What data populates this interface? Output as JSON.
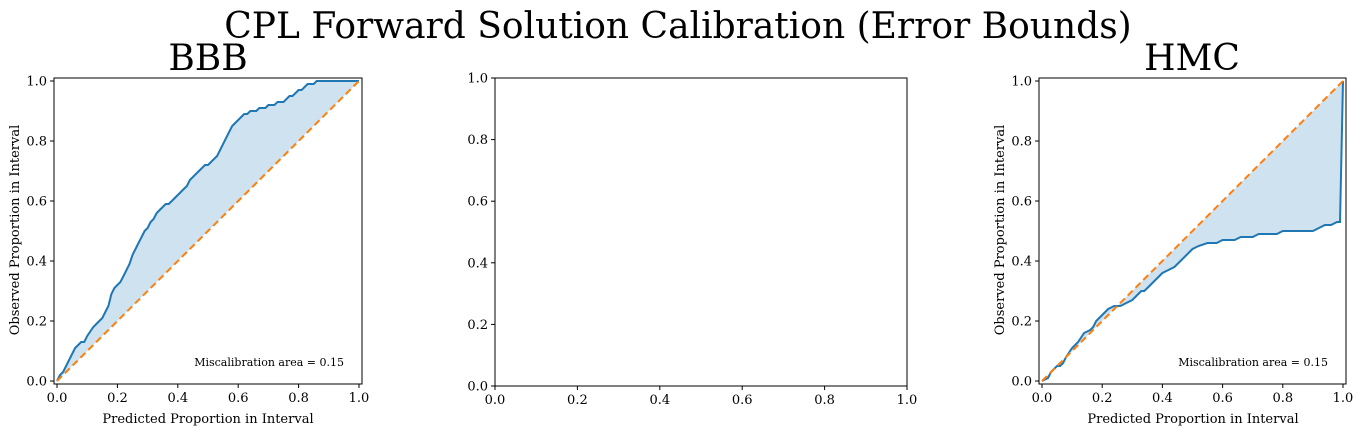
{
  "figure_title": "CPL Forward Solution Calibration (Error Bounds)",
  "colors": {
    "curve": "#1f77b4",
    "fill": "#cfe2f0",
    "ideal": "#ff7f0e",
    "axes": "#000000"
  },
  "chart_data": [
    {
      "type": "line",
      "title": "BBB",
      "xlabel": "Predicted Proportion in Interval",
      "ylabel": "Observed Proportion in Interval",
      "xlim": [
        0,
        1
      ],
      "ylim": [
        0,
        1
      ],
      "xticks": [
        "0.0",
        "0.2",
        "0.4",
        "0.6",
        "0.8",
        "1.0"
      ],
      "yticks": [
        "0.0",
        "0.2",
        "0.4",
        "0.6",
        "0.8",
        "1.0"
      ],
      "grid": false,
      "annotation": "Miscalibration area = 0.15",
      "series": [
        {
          "x": [
            0,
            0.01,
            0.02,
            0.03,
            0.04,
            0.05,
            0.06,
            0.07,
            0.08,
            0.09,
            0.1,
            0.12,
            0.14,
            0.15,
            0.16,
            0.17,
            0.18,
            0.19,
            0.2,
            0.21,
            0.22,
            0.23,
            0.24,
            0.25,
            0.26,
            0.27,
            0.28,
            0.29,
            0.3,
            0.31,
            0.32,
            0.33,
            0.34,
            0.35,
            0.36,
            0.37,
            0.38,
            0.39,
            0.4,
            0.41,
            0.42,
            0.43,
            0.44,
            0.45,
            0.46,
            0.47,
            0.48,
            0.49,
            0.5,
            0.51,
            0.52,
            0.53,
            0.54,
            0.55,
            0.56,
            0.57,
            0.58,
            0.59,
            0.6,
            0.61,
            0.62,
            0.63,
            0.64,
            0.65,
            0.66,
            0.67,
            0.68,
            0.69,
            0.7,
            0.71,
            0.72,
            0.73,
            0.74,
            0.75,
            0.76,
            0.77,
            0.78,
            0.79,
            0.8,
            0.81,
            0.82,
            0.83,
            0.84,
            0.85,
            0.86,
            0.87,
            0.88,
            0.9,
            0.92,
            0.95,
            0.98,
            1.0
          ],
          "y": [
            0,
            0.02,
            0.03,
            0.05,
            0.07,
            0.09,
            0.11,
            0.12,
            0.13,
            0.13,
            0.15,
            0.18,
            0.2,
            0.21,
            0.23,
            0.25,
            0.29,
            0.31,
            0.32,
            0.33,
            0.35,
            0.37,
            0.39,
            0.42,
            0.44,
            0.46,
            0.48,
            0.5,
            0.51,
            0.53,
            0.54,
            0.56,
            0.57,
            0.58,
            0.59,
            0.59,
            0.6,
            0.61,
            0.62,
            0.63,
            0.64,
            0.65,
            0.67,
            0.68,
            0.69,
            0.7,
            0.71,
            0.72,
            0.72,
            0.73,
            0.74,
            0.75,
            0.77,
            0.79,
            0.81,
            0.83,
            0.85,
            0.86,
            0.87,
            0.88,
            0.89,
            0.89,
            0.9,
            0.9,
            0.9,
            0.91,
            0.91,
            0.91,
            0.92,
            0.92,
            0.92,
            0.93,
            0.93,
            0.93,
            0.94,
            0.95,
            0.95,
            0.96,
            0.97,
            0.97,
            0.98,
            0.99,
            0.99,
            0.99,
            1.0,
            1.0,
            1.0,
            1.0,
            1.0,
            1.0,
            1.0,
            1.0
          ]
        }
      ]
    },
    {
      "type": "line",
      "xlim": [
        0,
        1
      ],
      "ylim": [
        0,
        1
      ],
      "xticks": [
        "0.0",
        "0.2",
        "0.4",
        "0.6",
        "0.8",
        "1.0"
      ],
      "yticks": [
        "0.0",
        "0.2",
        "0.4",
        "0.6",
        "0.8",
        "1.0"
      ],
      "grid": false,
      "series": []
    },
    {
      "type": "line",
      "title": "HMC",
      "xlabel": "Predicted Proportion in Interval",
      "ylabel": "Observed Proportion in Interval",
      "xlim": [
        0,
        1
      ],
      "ylim": [
        0,
        1
      ],
      "xticks": [
        "0.0",
        "0.2",
        "0.4",
        "0.6",
        "0.8",
        "1.0"
      ],
      "yticks": [
        "0.0",
        "0.2",
        "0.4",
        "0.6",
        "0.8",
        "1.0"
      ],
      "grid": false,
      "annotation": "Miscalibration area = 0.15",
      "series": [
        {
          "x": [
            0,
            0.02,
            0.03,
            0.04,
            0.05,
            0.06,
            0.07,
            0.08,
            0.1,
            0.12,
            0.14,
            0.16,
            0.17,
            0.18,
            0.19,
            0.2,
            0.22,
            0.24,
            0.26,
            0.28,
            0.3,
            0.31,
            0.32,
            0.33,
            0.34,
            0.35,
            0.36,
            0.38,
            0.4,
            0.42,
            0.44,
            0.46,
            0.48,
            0.5,
            0.52,
            0.55,
            0.58,
            0.6,
            0.62,
            0.64,
            0.66,
            0.68,
            0.7,
            0.72,
            0.74,
            0.76,
            0.78,
            0.8,
            0.82,
            0.84,
            0.86,
            0.88,
            0.9,
            0.92,
            0.94,
            0.96,
            0.98,
            0.99,
            1.0
          ],
          "y": [
            0,
            0.01,
            0.03,
            0.04,
            0.05,
            0.05,
            0.06,
            0.08,
            0.11,
            0.13,
            0.16,
            0.17,
            0.18,
            0.2,
            0.21,
            0.22,
            0.24,
            0.25,
            0.25,
            0.26,
            0.27,
            0.28,
            0.29,
            0.3,
            0.3,
            0.31,
            0.32,
            0.34,
            0.36,
            0.37,
            0.38,
            0.4,
            0.42,
            0.44,
            0.45,
            0.46,
            0.46,
            0.47,
            0.47,
            0.47,
            0.48,
            0.48,
            0.48,
            0.49,
            0.49,
            0.49,
            0.49,
            0.5,
            0.5,
            0.5,
            0.5,
            0.5,
            0.5,
            0.51,
            0.52,
            0.52,
            0.53,
            0.53,
            1.0
          ]
        }
      ]
    }
  ]
}
